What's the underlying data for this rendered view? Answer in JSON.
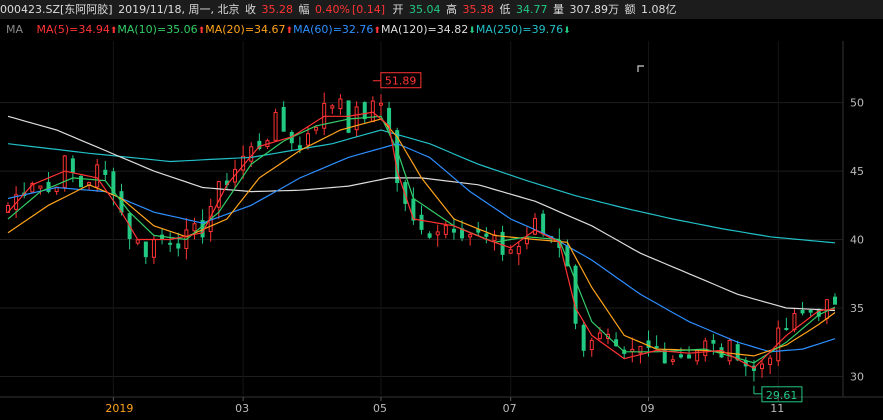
{
  "header": {
    "code": "000423.SZ[东阿阿胶]",
    "date": "2019/11/18, 周一, 北京",
    "close_label": "收",
    "close_value": "35.28",
    "change_label": "幅",
    "change_value": "0.40%",
    "change_abs": "[0.14]",
    "open_label": "开",
    "open_value": "35.04",
    "high_label": "高",
    "high_value": "35.38",
    "low_label": "低",
    "low_value": "34.77",
    "volume_label": "量",
    "volume_value": "307.89万",
    "amount_label": "额",
    "amount_value": "1.08亿"
  },
  "ma_bar": {
    "label": "MA",
    "items": [
      {
        "text": "MA(5)=34.94",
        "color": "#ff3333",
        "dir": "up"
      },
      {
        "text": "MA(10)=35.06",
        "color": "#33cc66",
        "dir": "up"
      },
      {
        "text": "MA(20)=34.67",
        "color": "#ffa31a",
        "dir": "up"
      },
      {
        "text": "MA(60)=32.76",
        "color": "#2d8fff",
        "dir": "up"
      },
      {
        "text": "MA(120)=34.82",
        "color": "#dddddd",
        "dir": "down"
      },
      {
        "text": "MA(250)=39.76",
        "color": "#22c0c8",
        "dir": "down"
      }
    ]
  },
  "annotations": {
    "high_marker": "51.89",
    "low_marker": "29.61"
  },
  "colors": {
    "up": "#ff3333",
    "down": "#22c983",
    "ma5": "#ff3333",
    "ma10": "#33cc66",
    "ma20": "#ffa31a",
    "ma60": "#2d8fff",
    "ma120": "#dddddd",
    "ma250": "#22c0c8"
  },
  "chart_data": {
    "type": "candlestick",
    "x_ticks": [
      "2019",
      "03",
      "05",
      "07",
      "09",
      "11"
    ],
    "y_ticks": [
      30,
      35,
      40,
      45,
      50
    ],
    "ylim": [
      28.5,
      54.5
    ],
    "grid": true,
    "close_path": [
      [
        0,
        42.5
      ],
      [
        3,
        44.5
      ],
      [
        5,
        43.5
      ],
      [
        7,
        45.5
      ],
      [
        9,
        44.0
      ],
      [
        11,
        45.0
      ],
      [
        13,
        44.0
      ],
      [
        14,
        42.0
      ],
      [
        15,
        40.5
      ],
      [
        16,
        39.7
      ],
      [
        17,
        39.3
      ],
      [
        18,
        39.9
      ],
      [
        20,
        40.2
      ],
      [
        22,
        40.0
      ],
      [
        24,
        40.8
      ],
      [
        25,
        42.5
      ],
      [
        27,
        44.5
      ],
      [
        29,
        46.0
      ],
      [
        31,
        47.0
      ],
      [
        33,
        48.5
      ],
      [
        35,
        47.5
      ],
      [
        36,
        46.5
      ],
      [
        37,
        48.0
      ],
      [
        39,
        49.5
      ],
      [
        41,
        50.5
      ],
      [
        42,
        48.5
      ],
      [
        43,
        49.0
      ],
      [
        45,
        49.5
      ],
      [
        46,
        50.0
      ],
      [
        47,
        48.5
      ],
      [
        48,
        44.0
      ],
      [
        49,
        42.8
      ],
      [
        50,
        41.0
      ],
      [
        51,
        40.5
      ],
      [
        53,
        41.0
      ],
      [
        55,
        41.2
      ],
      [
        57,
        40.5
      ],
      [
        59,
        40.0
      ],
      [
        61,
        39.2
      ],
      [
        63,
        39.5
      ],
      [
        64,
        40.2
      ],
      [
        65,
        41.0
      ],
      [
        66,
        40.5
      ],
      [
        68,
        39.8
      ],
      [
        69,
        38.5
      ],
      [
        70,
        33.5
      ],
      [
        71,
        32.5
      ],
      [
        72,
        33.0
      ],
      [
        74,
        32.5
      ],
      [
        75,
        31.5
      ],
      [
        76,
        31.0
      ],
      [
        78,
        31.8
      ],
      [
        80,
        32.0
      ],
      [
        82,
        31.5
      ],
      [
        84,
        31.8
      ],
      [
        86,
        32.3
      ],
      [
        88,
        31.8
      ],
      [
        90,
        32.0
      ],
      [
        91,
        31.0
      ],
      [
        92,
        30.3
      ],
      [
        93,
        31.0
      ],
      [
        94,
        32.0
      ],
      [
        96,
        33.5
      ],
      [
        98,
        34.5
      ],
      [
        100,
        35.0
      ],
      [
        102,
        35.28
      ]
    ],
    "ma_paths": {
      "ma5": [
        [
          0,
          42.0
        ],
        [
          3,
          44.0
        ],
        [
          7,
          45.0
        ],
        [
          11,
          44.5
        ],
        [
          14,
          42.0
        ],
        [
          16,
          40.0
        ],
        [
          20,
          40.0
        ],
        [
          24,
          40.5
        ],
        [
          27,
          44.0
        ],
        [
          31,
          46.8
        ],
        [
          35,
          47.5
        ],
        [
          39,
          49.0
        ],
        [
          42,
          49.0
        ],
        [
          45,
          49.3
        ],
        [
          47,
          48.3
        ],
        [
          48,
          45.0
        ],
        [
          50,
          41.5
        ],
        [
          55,
          41.0
        ],
        [
          59,
          40.0
        ],
        [
          62,
          39.4
        ],
        [
          65,
          40.7
        ],
        [
          68,
          39.8
        ],
        [
          70,
          35.0
        ],
        [
          72,
          33.0
        ],
        [
          76,
          31.3
        ],
        [
          80,
          31.9
        ],
        [
          84,
          31.7
        ],
        [
          88,
          31.9
        ],
        [
          92,
          30.6
        ],
        [
          96,
          33.0
        ],
        [
          100,
          34.8
        ],
        [
          102,
          34.94
        ]
      ],
      "ma10": [
        [
          0,
          41.5
        ],
        [
          4,
          43.5
        ],
        [
          8,
          44.5
        ],
        [
          12,
          44.3
        ],
        [
          15,
          42.0
        ],
        [
          18,
          40.3
        ],
        [
          22,
          40.0
        ],
        [
          26,
          42.0
        ],
        [
          30,
          45.5
        ],
        [
          34,
          47.2
        ],
        [
          38,
          48.3
        ],
        [
          42,
          48.8
        ],
        [
          46,
          49.0
        ],
        [
          48,
          46.5
        ],
        [
          50,
          43.0
        ],
        [
          55,
          41.0
        ],
        [
          60,
          39.8
        ],
        [
          64,
          40.2
        ],
        [
          68,
          40.0
        ],
        [
          70,
          37.0
        ],
        [
          72,
          34.0
        ],
        [
          76,
          31.8
        ],
        [
          80,
          31.8
        ],
        [
          86,
          32.0
        ],
        [
          92,
          31.0
        ],
        [
          96,
          32.5
        ],
        [
          100,
          34.5
        ],
        [
          102,
          35.06
        ]
      ],
      "ma20": [
        [
          0,
          40.5
        ],
        [
          5,
          42.5
        ],
        [
          10,
          44.0
        ],
        [
          14,
          43.0
        ],
        [
          18,
          41.0
        ],
        [
          22,
          40.2
        ],
        [
          27,
          41.5
        ],
        [
          31,
          44.5
        ],
        [
          36,
          46.5
        ],
        [
          41,
          48.0
        ],
        [
          46,
          48.8
        ],
        [
          48,
          47.5
        ],
        [
          51,
          44.5
        ],
        [
          55,
          41.5
        ],
        [
          60,
          40.3
        ],
        [
          65,
          40.0
        ],
        [
          69,
          39.8
        ],
        [
          72,
          36.5
        ],
        [
          76,
          33.0
        ],
        [
          80,
          32.0
        ],
        [
          86,
          31.9
        ],
        [
          92,
          31.5
        ],
        [
          96,
          32.3
        ],
        [
          100,
          33.8
        ],
        [
          102,
          34.67
        ]
      ],
      "ma60": [
        [
          0,
          43.0
        ],
        [
          6,
          43.8
        ],
        [
          12,
          43.5
        ],
        [
          18,
          42.0
        ],
        [
          24,
          41.2
        ],
        [
          30,
          42.5
        ],
        [
          36,
          44.5
        ],
        [
          42,
          46.0
        ],
        [
          48,
          47.0
        ],
        [
          52,
          46.0
        ],
        [
          57,
          43.5
        ],
        [
          62,
          41.5
        ],
        [
          67,
          40.2
        ],
        [
          72,
          38.5
        ],
        [
          78,
          36.0
        ],
        [
          84,
          34.0
        ],
        [
          90,
          32.5
        ],
        [
          94,
          31.8
        ],
        [
          98,
          32.0
        ],
        [
          102,
          32.76
        ]
      ],
      "ma120": [
        [
          0,
          49.0
        ],
        [
          6,
          48.0
        ],
        [
          12,
          46.5
        ],
        [
          18,
          45.0
        ],
        [
          24,
          43.8
        ],
        [
          30,
          43.5
        ],
        [
          36,
          43.6
        ],
        [
          42,
          43.9
        ],
        [
          47,
          44.5
        ],
        [
          51,
          44.5
        ],
        [
          58,
          44.0
        ],
        [
          65,
          42.8
        ],
        [
          72,
          41.0
        ],
        [
          78,
          39.0
        ],
        [
          84,
          37.5
        ],
        [
          90,
          36.0
        ],
        [
          96,
          35.0
        ],
        [
          102,
          34.82
        ]
      ],
      "ma250": [
        [
          0,
          47.0
        ],
        [
          10,
          46.3
        ],
        [
          20,
          45.7
        ],
        [
          30,
          46.0
        ],
        [
          40,
          47.0
        ],
        [
          46,
          48.0
        ],
        [
          52,
          47.0
        ],
        [
          58,
          45.5
        ],
        [
          64,
          44.3
        ],
        [
          70,
          43.2
        ],
        [
          76,
          42.3
        ],
        [
          82,
          41.5
        ],
        [
          88,
          40.8
        ],
        [
          94,
          40.2
        ],
        [
          102,
          39.76
        ]
      ]
    }
  }
}
